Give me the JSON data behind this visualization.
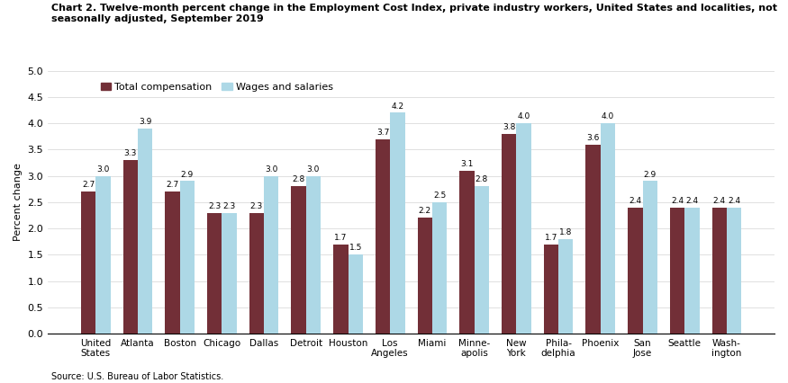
{
  "title_line1": "Chart 2. Twelve-month percent change in the Employment Cost Index, private industry workers, United States and localities, not",
  "title_line2": "seasonally adjusted, September 2019",
  "ylabel": "Percent change",
  "source": "Source: U.S. Bureau of Labor Statistics.",
  "categories": [
    "United\nStates",
    "Atlanta",
    "Boston",
    "Chicago",
    "Dallas",
    "Detroit",
    "Houston",
    "Los\nAngeles",
    "Miami",
    "Minne-\napolis",
    "New\nYork",
    "Phila-\ndelphia",
    "Phoenix",
    "San\nJose",
    "Seattle",
    "Wash-\nington"
  ],
  "total_compensation": [
    2.7,
    3.3,
    2.7,
    2.3,
    2.3,
    2.8,
    1.7,
    3.7,
    2.2,
    3.1,
    3.8,
    1.7,
    3.6,
    2.4,
    2.4,
    2.4
  ],
  "wages_and_salaries": [
    3.0,
    3.9,
    2.9,
    2.3,
    3.0,
    3.0,
    1.5,
    4.2,
    2.5,
    2.8,
    4.0,
    1.8,
    4.0,
    2.9,
    2.4,
    2.4
  ],
  "color_total": "#722F37",
  "color_wages": "#ADD8E6",
  "ylim": [
    0,
    5.0
  ],
  "yticks": [
    0.0,
    0.5,
    1.0,
    1.5,
    2.0,
    2.5,
    3.0,
    3.5,
    4.0,
    4.5,
    5.0
  ],
  "legend_labels": [
    "Total compensation",
    "Wages and salaries"
  ],
  "bar_width": 0.35
}
